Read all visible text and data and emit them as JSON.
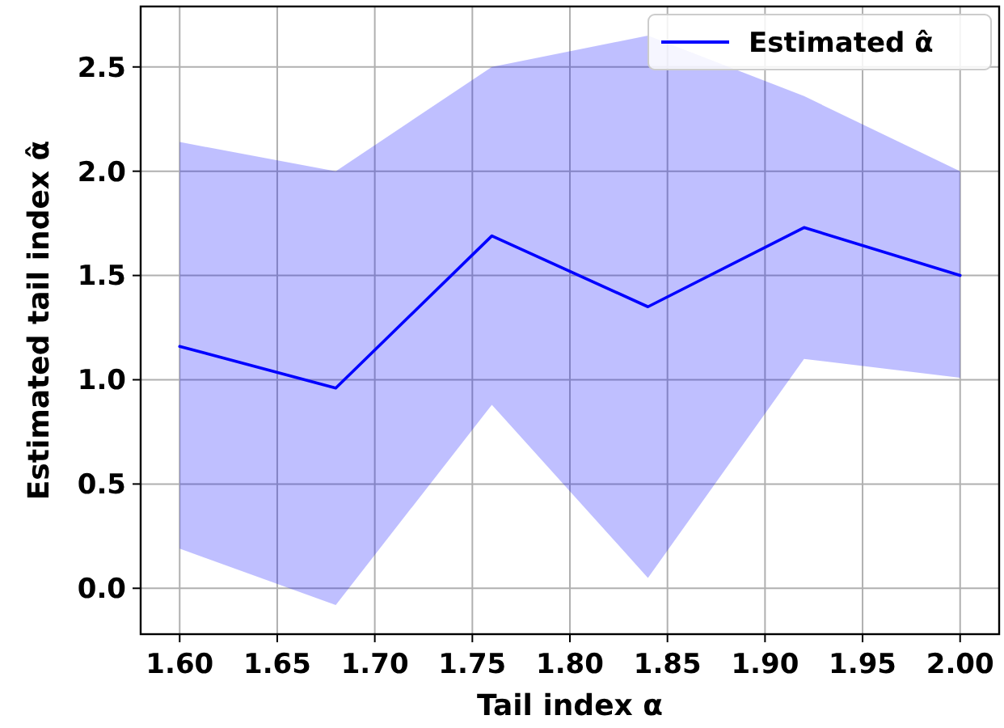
{
  "chart_data": {
    "type": "line",
    "xlabel": "Tail index α",
    "ylabel": "Estimated tail index α̂",
    "x": [
      1.6,
      1.68,
      1.76,
      1.84,
      1.92,
      2.0
    ],
    "series": [
      {
        "name": "Estimated α̂",
        "color": "#0000ff",
        "values": [
          1.16,
          0.96,
          1.69,
          1.35,
          1.73,
          1.5
        ],
        "lower": [
          0.19,
          -0.08,
          0.88,
          0.05,
          1.1,
          1.01
        ],
        "upper": [
          2.14,
          2.0,
          2.5,
          2.65,
          2.36,
          2.0
        ]
      }
    ],
    "xlim": [
      1.58,
      2.02
    ],
    "xticks": [
      {
        "value": 1.6,
        "label": "1.60"
      },
      {
        "value": 1.65,
        "label": "1.65"
      },
      {
        "value": 1.7,
        "label": "1.70"
      },
      {
        "value": 1.75,
        "label": "1.75"
      },
      {
        "value": 1.8,
        "label": "1.80"
      },
      {
        "value": 1.85,
        "label": "1.85"
      },
      {
        "value": 1.9,
        "label": "1.90"
      },
      {
        "value": 1.95,
        "label": "1.95"
      },
      {
        "value": 2.0,
        "label": "2.00"
      }
    ],
    "ylim": [
      -0.22,
      2.79
    ],
    "yticks": [
      {
        "value": 0,
        "label": "0.0"
      },
      {
        "value": 0.5,
        "label": "0.5"
      },
      {
        "value": 1,
        "label": "1.0"
      },
      {
        "value": 1.5,
        "label": "1.5"
      },
      {
        "value": 2,
        "label": "2.0"
      },
      {
        "value": 2.5,
        "label": "2.5"
      }
    ],
    "grid": true,
    "legend": "top right",
    "line_style": "solid"
  }
}
